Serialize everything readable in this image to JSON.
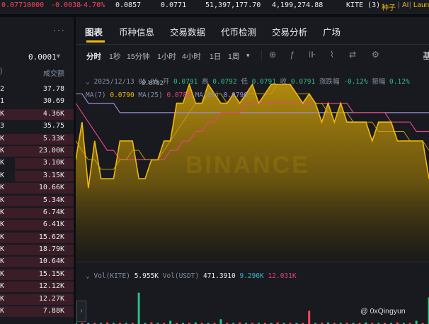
{
  "ticker": {
    "last_price": "0.07710000",
    "change": "-0.0038",
    "change_pct": "-4.70%",
    "high": "0.0857",
    "low": "0.0771",
    "volume_base": "51,397,177.70",
    "volume_quote": "4,199,274.88",
    "symbol_tag": "KITE (3)",
    "tag_seed": "种子",
    "tag_ai": "AI",
    "tag_launch": "Laun"
  },
  "book": {
    "more": "···",
    "precision": "0.0001",
    "col_right": "成交额",
    "col_left": ")",
    "rows": [
      {
        "l": "2",
        "r": "37.78",
        "fill": 0
      },
      {
        "l": "1",
        "r": "30.69",
        "fill": 0
      },
      {
        "l": "K",
        "r": "4.36K",
        "fill": 100
      },
      {
        "l": "3",
        "r": "35.75",
        "fill": 0
      },
      {
        "l": "K",
        "r": "5.33K",
        "fill": 100
      },
      {
        "l": "K",
        "r": "23.00K",
        "fill": 100
      },
      {
        "l": "K",
        "r": "3.10K",
        "fill": 80
      },
      {
        "l": "K",
        "r": "3.15K",
        "fill": 80
      },
      {
        "l": "K",
        "r": "10.66K",
        "fill": 100
      },
      {
        "l": "K",
        "r": "5.34K",
        "fill": 100
      },
      {
        "l": "K",
        "r": "6.74K",
        "fill": 100
      },
      {
        "l": "K",
        "r": "6.41K",
        "fill": 100
      },
      {
        "l": "K",
        "r": "15.62K",
        "fill": 100
      },
      {
        "l": "K",
        "r": "18.79K",
        "fill": 100
      },
      {
        "l": "K",
        "r": "10.64K",
        "fill": 100
      },
      {
        "l": "K",
        "r": "15.15K",
        "fill": 100
      },
      {
        "l": "K",
        "r": "12.12K",
        "fill": 100
      },
      {
        "l": "K",
        "r": "12.27K",
        "fill": 100
      },
      {
        "l": "K",
        "r": "7.88K",
        "fill": 100
      }
    ]
  },
  "tabs": [
    "图表",
    "币种信息",
    "交易数据",
    "代币检测",
    "交易分析",
    "广场"
  ],
  "timeframes": [
    "分时",
    "1秒",
    "15分钟",
    "1小时",
    "4小时",
    "1日",
    "1周"
  ],
  "timeframe_more": "▾",
  "tools": {
    "crosshair": "⊕",
    "indicator": "ƒ",
    "bars": "⊪",
    "drawing": "⌇",
    "compare": "⇄",
    "settings": "⚙",
    "right": "基"
  },
  "ohlc": {
    "date": "2025/12/13 05:05",
    "open_label": "开",
    "open": "0.0791",
    "high_label": "高",
    "high": "0.0792",
    "low_label": "低",
    "low": "0.0791",
    "close_label": "收",
    "close": "0.0791",
    "chg_label": "涨跌幅",
    "chg": "-0.12%",
    "amp_label": "振幅",
    "amp": "0.12%"
  },
  "ma": {
    "ma7_label": "MA(7)",
    "ma7": "0.0790",
    "ma25_label": "MA(25)",
    "ma25": "0.0789",
    "ma99_label": "MA(99)",
    "ma99": "0.0790"
  },
  "price_marker": "0.0792",
  "watermark": "BINANCE",
  "vol": {
    "base_label": "Vol(KITE)",
    "base": "5.955K",
    "quote_label": "Vol(USDT)",
    "quote": "471.3910",
    "ma1": "9.296K",
    "ma2": "12.031K"
  },
  "credit": "@ 0xQingyun",
  "colors": {
    "up": "#2ebd85",
    "down": "#f6465d",
    "accent": "#f0b90b",
    "ma7": "#f0b90b",
    "ma25": "#e0457b",
    "ma99": "#9e8bd0"
  },
  "chart_data": {
    "type": "area",
    "series": [
      {
        "values": [
          0.0784,
          0.0788,
          0.0781,
          0.0786,
          0.0782,
          0.0782,
          0.0782,
          0.0786,
          0.0786,
          0.0786,
          0.0782,
          0.0782,
          0.0784,
          0.0784,
          0.0786,
          0.0786,
          0.079,
          0.079,
          0.0792,
          0.079,
          0.079,
          0.0792,
          0.0791,
          0.079,
          0.079,
          0.0791,
          0.079,
          0.0791,
          0.0792,
          0.079,
          0.0791,
          0.0792,
          0.0792,
          0.0792,
          0.0792,
          0.0791,
          0.079,
          0.0791,
          0.079,
          0.0788,
          0.079,
          0.0788,
          0.079,
          0.0788,
          0.0788,
          0.0788,
          0.0788,
          0.0786,
          0.0788,
          0.0788,
          0.0788,
          0.0786,
          0.0786,
          0.0786,
          0.0786,
          0.0786,
          0.0782
        ]
      },
      {
        "values": [
          0.0786,
          0.0785,
          0.0784,
          0.0784,
          0.0783,
          0.0783,
          0.0783,
          0.0784,
          0.0784,
          0.0785,
          0.0785,
          0.0784,
          0.0784,
          0.0784,
          0.0785,
          0.0786,
          0.0787,
          0.0788,
          0.0789,
          0.079,
          0.079,
          0.0791,
          0.0791,
          0.0791,
          0.079,
          0.0791,
          0.079,
          0.0791,
          0.0791,
          0.0791,
          0.0791,
          0.0791,
          0.0792,
          0.0792,
          0.0792,
          0.0791,
          0.0791,
          0.0791,
          0.079,
          0.079,
          0.0789,
          0.0789,
          0.0789,
          0.0789,
          0.0788,
          0.0788,
          0.0788,
          0.0788,
          0.0787,
          0.0787,
          0.0787,
          0.0787,
          0.0787,
          0.0786,
          0.0786,
          0.0786,
          0.0785
        ]
      },
      {
        "values": [
          0.079,
          0.0789,
          0.0788,
          0.0787,
          0.0786,
          0.0785,
          0.0785,
          0.0784,
          0.0784,
          0.0784,
          0.0784,
          0.0784,
          0.0784,
          0.0784,
          0.0784,
          0.0785,
          0.0785,
          0.0786,
          0.0786,
          0.0787,
          0.0787,
          0.0788,
          0.0788,
          0.0789,
          0.0789,
          0.0789,
          0.0789,
          0.079,
          0.079,
          0.079,
          0.079,
          0.079,
          0.079,
          0.079,
          0.079,
          0.079,
          0.079,
          0.079,
          0.079,
          0.079,
          0.079,
          0.079,
          0.079,
          0.079,
          0.0789,
          0.0789,
          0.0789,
          0.0789,
          0.0789,
          0.0789,
          0.0788,
          0.0788,
          0.0788,
          0.0788,
          0.0787,
          0.0787,
          0.0787
        ]
      },
      {
        "values": [
          0.0791,
          0.0791,
          0.079,
          0.079,
          0.079,
          0.079,
          0.079,
          0.0789,
          0.0789,
          0.0789,
          0.0789,
          0.0789,
          0.0789,
          0.0789,
          0.0789,
          0.0789,
          0.0789,
          0.0789,
          0.0789,
          0.0789,
          0.0789,
          0.0789,
          0.0789,
          0.0789,
          0.0789,
          0.0789,
          0.0789,
          0.0789,
          0.0789,
          0.0789,
          0.0789,
          0.0789,
          0.0789,
          0.0789,
          0.0789,
          0.0789,
          0.0789,
          0.0789,
          0.0789,
          0.0789,
          0.0789,
          0.0789,
          0.0789,
          0.0789,
          0.0789,
          0.0789,
          0.0789,
          0.0789,
          0.0789,
          0.0789,
          0.0789,
          0.0789,
          0.0789,
          0.0789,
          0.0789,
          0.0789,
          0.0789
        ]
      }
    ],
    "volume": [
      0.3,
      0.1,
      0.2,
      0.1,
      0.2,
      0.3,
      0.1,
      0.2,
      0.2,
      0.1,
      5.9,
      0.2,
      0.3,
      0.2,
      0.1,
      0.6,
      0.2,
      0.1,
      0.2,
      0.3,
      0.2,
      0.1,
      0.2,
      0.9,
      0.2,
      0.1,
      0.3,
      0.2,
      0.1,
      0.2,
      0.2,
      0.1,
      0.3,
      0.2,
      0.1,
      0.2,
      0.2,
      2.5,
      0.2,
      0.1,
      0.3,
      0.2,
      0.1,
      0.2,
      0.1,
      0.2,
      0.3,
      0.1,
      0.2,
      0.1,
      0.2,
      0.3,
      0.1,
      0.2,
      0.6,
      0.1,
      5.0
    ],
    "volume_colors": [
      "up",
      "down",
      "up",
      "down",
      "up",
      "down",
      "up",
      "down",
      "up",
      "down",
      "up",
      "up",
      "down",
      "up",
      "down",
      "up",
      "down",
      "up",
      "down",
      "up",
      "down",
      "up",
      "down",
      "up",
      "down",
      "up",
      "down",
      "up",
      "down",
      "up",
      "down",
      "up",
      "down",
      "up",
      "down",
      "up",
      "down",
      "down",
      "up",
      "down",
      "up",
      "down",
      "up",
      "down",
      "up",
      "down",
      "up",
      "down",
      "up",
      "down",
      "up",
      "down",
      "up",
      "down",
      "up",
      "down",
      "up"
    ],
    "ylim": [
      0.077,
      0.0796
    ],
    "legend": "top-left"
  }
}
